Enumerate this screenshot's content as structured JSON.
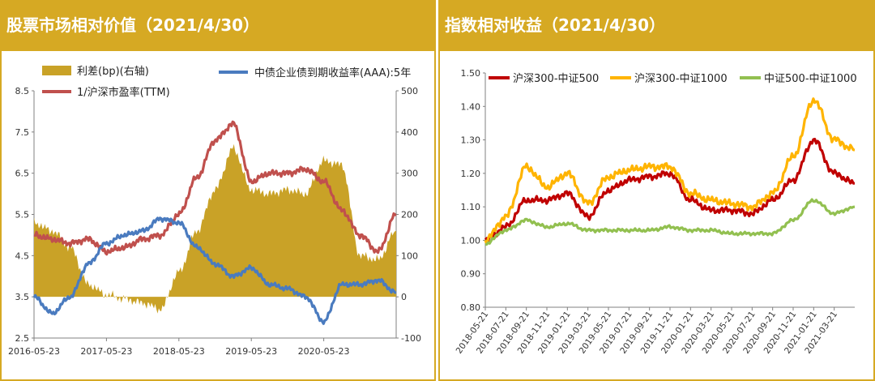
{
  "left_panel": {
    "title": "股票市场相对价值（2021/4/30）"
  },
  "right_panel": {
    "title": "指数相对收益（2021/4/30）"
  },
  "chart_data": [
    {
      "type": "line",
      "title": "股票市场相对价值（2021/4/30）",
      "x": [
        "2016-05-23",
        "2016-08-23",
        "2016-11-23",
        "2017-02-23",
        "2017-05-23",
        "2017-08-23",
        "2017-11-23",
        "2018-02-23",
        "2018-05-23",
        "2018-08-23",
        "2018-11-23",
        "2019-02-23",
        "2019-05-23",
        "2019-08-23",
        "2019-11-23",
        "2020-02-23",
        "2020-05-23",
        "2020-08-23",
        "2020-11-23",
        "2021-02-23",
        "2021-04-30"
      ],
      "x_ticks": [
        "2016-05-23",
        "2017-05-23",
        "2018-05-23",
        "2019-05-23",
        "2020-05-23"
      ],
      "y_left": {
        "range": [
          2.5,
          8.5
        ],
        "ticks": [
          "2.5",
          "3.5",
          "4.5",
          "5.5",
          "6.5",
          "7.5",
          "8.5"
        ]
      },
      "y_right": {
        "range": [
          -100,
          500
        ],
        "ticks": [
          "-100",
          "0",
          "100",
          "200",
          "300",
          "400",
          "500"
        ]
      },
      "legend": [
        "利差(bp)(右轴)",
        "1/沪深市盈率(TTM)",
        "中债企业债到期收益率(AAA):5年"
      ],
      "series": [
        {
          "name": "利差(bp)(右轴)",
          "type": "area",
          "axis": "right",
          "color": "#c9a227",
          "values": [
            180,
            160,
            120,
            30,
            5,
            -5,
            -15,
            -30,
            60,
            160,
            260,
            360,
            260,
            250,
            260,
            250,
            330,
            320,
            100,
            90,
            160
          ]
        },
        {
          "name": "1/沪深市盈率(TTM)",
          "type": "line",
          "axis": "left",
          "color": "#c0504d",
          "values": [
            5.0,
            4.9,
            4.8,
            4.9,
            4.6,
            4.7,
            4.9,
            5.0,
            5.5,
            6.4,
            7.3,
            7.7,
            6.3,
            6.5,
            6.5,
            6.6,
            6.3,
            5.6,
            5.0,
            4.6,
            5.5
          ]
        },
        {
          "name": "中债企业债到期收益率(AAA):5年",
          "type": "line",
          "axis": "left",
          "color": "#4a7bbf",
          "values": [
            3.5,
            3.1,
            3.5,
            4.3,
            4.8,
            5.0,
            5.1,
            5.4,
            5.3,
            4.7,
            4.3,
            4.0,
            4.2,
            3.8,
            3.7,
            3.5,
            2.9,
            3.8,
            3.8,
            3.9,
            3.6
          ]
        }
      ]
    },
    {
      "type": "line",
      "title": "指数相对收益（2021/4/30）",
      "x": [
        "2018-05-21",
        "2018-07-21",
        "2018-09-21",
        "2018-11-21",
        "2019-01-21",
        "2019-03-21",
        "2019-05-21",
        "2019-07-21",
        "2019-09-21",
        "2019-11-21",
        "2020-01-21",
        "2020-03-21",
        "2020-05-21",
        "2020-07-21",
        "2020-09-21",
        "2020-11-21",
        "2021-01-21",
        "2021-03-21",
        "2021-04-30"
      ],
      "x_ticks": [
        "2018-05-21",
        "2018-07-21",
        "2018-09-21",
        "2018-11-21",
        "2019-01-21",
        "2019-03-21",
        "2019-05-21",
        "2019-07-21",
        "2019-09-21",
        "2019-11-21",
        "2020-01-21",
        "2020-03-21",
        "2020-05-21",
        "2020-07-21",
        "2020-09-21",
        "2020-11-21",
        "2021-01-21",
        "2021-03-21"
      ],
      "y": {
        "range": [
          0.8,
          1.5
        ],
        "ticks": [
          "0.80",
          "0.90",
          "1.00",
          "1.10",
          "1.20",
          "1.30",
          "1.40",
          "1.50"
        ]
      },
      "legend": [
        "沪深300-中证500",
        "沪深300-中证1000",
        "中证500-中证1000"
      ],
      "series": [
        {
          "name": "沪深300-中证500",
          "color": "#c00000",
          "values": [
            1.0,
            1.04,
            1.12,
            1.12,
            1.14,
            1.07,
            1.15,
            1.18,
            1.19,
            1.2,
            1.12,
            1.09,
            1.09,
            1.08,
            1.12,
            1.18,
            1.3,
            1.2,
            1.17
          ]
        },
        {
          "name": "沪深300-中证1000",
          "color": "#ffb400",
          "values": [
            1.0,
            1.07,
            1.22,
            1.16,
            1.2,
            1.11,
            1.19,
            1.21,
            1.22,
            1.22,
            1.14,
            1.12,
            1.11,
            1.1,
            1.14,
            1.25,
            1.42,
            1.3,
            1.27
          ]
        },
        {
          "name": "中证500-中证1000",
          "color": "#92c050",
          "values": [
            0.99,
            1.03,
            1.06,
            1.04,
            1.05,
            1.03,
            1.03,
            1.03,
            1.03,
            1.04,
            1.03,
            1.03,
            1.02,
            1.02,
            1.02,
            1.06,
            1.12,
            1.08,
            1.1
          ]
        }
      ]
    }
  ]
}
